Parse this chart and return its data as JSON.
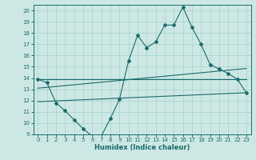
{
  "title": "",
  "xlabel": "Humidex (Indice chaleur)",
  "ylabel": "",
  "bg_color": "#cde8e4",
  "grid_color": "#a8d4d0",
  "line_color": "#1a6b6b",
  "xlim": [
    -0.5,
    23.5
  ],
  "ylim": [
    9,
    20.5
  ],
  "xticks": [
    0,
    1,
    2,
    3,
    4,
    5,
    6,
    7,
    8,
    9,
    10,
    11,
    12,
    13,
    14,
    15,
    16,
    17,
    18,
    19,
    20,
    21,
    22,
    23
  ],
  "yticks": [
    9,
    10,
    11,
    12,
    13,
    14,
    15,
    16,
    17,
    18,
    19,
    20
  ],
  "line1_x": [
    0,
    1,
    2,
    3,
    4,
    5,
    6,
    7,
    8,
    9,
    10,
    11,
    12,
    13,
    14,
    15,
    16,
    17,
    18,
    19,
    20,
    21,
    22,
    23
  ],
  "line1_y": [
    13.9,
    13.6,
    11.8,
    11.1,
    10.3,
    9.5,
    8.85,
    8.85,
    10.4,
    12.1,
    15.5,
    17.8,
    16.7,
    17.2,
    18.7,
    18.7,
    20.3,
    18.5,
    17.0,
    15.2,
    14.8,
    14.4,
    13.9,
    12.7
  ],
  "line2_x": [
    0,
    23
  ],
  "line2_y": [
    13.9,
    13.9
  ],
  "line3_x": [
    0,
    23
  ],
  "line3_y": [
    11.9,
    12.7
  ],
  "line4_x": [
    0,
    23
  ],
  "line4_y": [
    13.1,
    14.85
  ],
  "marker": "D",
  "markersize": 2.0
}
